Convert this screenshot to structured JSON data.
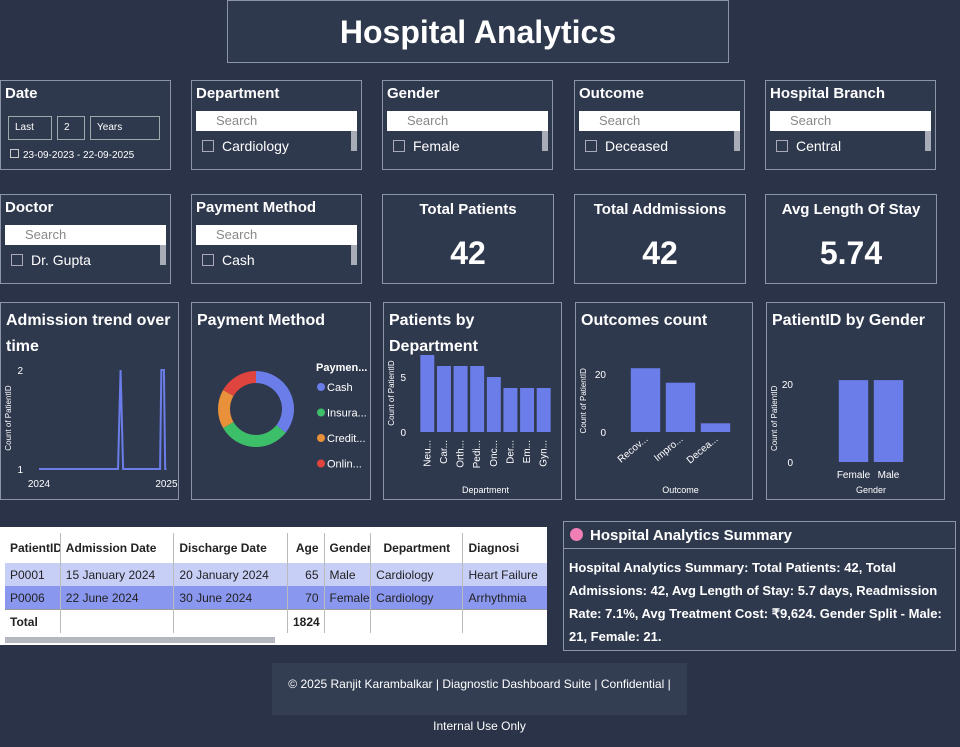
{
  "header": {
    "title": "Hospital Analytics"
  },
  "date_filter": {
    "label": "Date",
    "period": "Last",
    "count": "2",
    "unit": "Years",
    "range": "23-09-2023 - 22-09-2025"
  },
  "slicers": [
    {
      "label": "Department",
      "search": "Search",
      "option": "Cardiology"
    },
    {
      "label": "Gender",
      "search": "Search",
      "option": "Female"
    },
    {
      "label": "Outcome",
      "search": "Search",
      "option": "Deceased"
    },
    {
      "label": "Hospital Branch",
      "search": "Search",
      "option": "Central"
    },
    {
      "label": "Doctor",
      "search": "Search",
      "option": "Dr. Gupta"
    },
    {
      "label": "Payment Method",
      "search": "Search",
      "option": "Cash"
    }
  ],
  "kpis": [
    {
      "label": "Total Patients",
      "value": 42
    },
    {
      "label": "Total Addmissions",
      "value": 42
    },
    {
      "label": "Avg Length Of Stay",
      "value": 5.74
    }
  ],
  "chart_data": [
    {
      "type": "line",
      "title": "Admission trend over time",
      "y_label": "Count of PatientID",
      "color": "#6b7de8",
      "x": [
        2024.0,
        2024.62,
        2024.64,
        2024.66,
        2024.95,
        2024.96,
        2024.98,
        2024.99,
        2025.0
      ],
      "values": [
        1,
        1,
        2,
        1,
        1,
        2,
        2,
        1,
        1
      ],
      "xlim": [
        2024,
        2025.02
      ],
      "xticks": [
        2024,
        2025
      ],
      "ylim": [
        1,
        2
      ],
      "yticks": [
        1,
        2
      ]
    },
    {
      "type": "pie",
      "donut": true,
      "title": "Payment Method",
      "legend_title": "Paymen...",
      "categories": [
        "Cash",
        "Insura...",
        "Credit...",
        "Onlin..."
      ],
      "values": [
        15,
        13,
        7,
        7
      ],
      "colors": [
        "#6b7de8",
        "#3dbf6a",
        "#e8913a",
        "#e0443e"
      ]
    },
    {
      "type": "bar",
      "title": "Patients by Department",
      "x_label": "Department",
      "y_label": "Count of PatientID",
      "color": "#6b7de8",
      "categories": [
        "Neu...",
        "Car...",
        "Orth...",
        "Pedi...",
        "Onc...",
        "Der...",
        "Em...",
        "Gyn..."
      ],
      "values": [
        7,
        6,
        6,
        6,
        5,
        4,
        4,
        4
      ],
      "ylim": [
        0,
        8
      ],
      "yticks": [
        0,
        5
      ]
    },
    {
      "type": "bar",
      "title": "Outcomes count",
      "x_label": "Outcome",
      "y_label": "Count of PatientID",
      "color": "#6b7de8",
      "categories": [
        "Recov...",
        "Impro...",
        "Decea..."
      ],
      "values": [
        22,
        17,
        3
      ],
      "ylim": [
        0,
        25
      ],
      "yticks": [
        0,
        20
      ]
    },
    {
      "type": "bar",
      "title": "PatientID by Gender",
      "x_label": "Gender",
      "y_label": "Count of PatientID",
      "color": "#6b7de8",
      "categories": [
        "Female",
        "Male"
      ],
      "values": [
        21,
        21
      ],
      "ylim": [
        0,
        25
      ],
      "yticks": [
        0,
        20
      ]
    }
  ],
  "table": {
    "columns": [
      "PatientID",
      "Admission Date",
      "Discharge Date",
      "Age",
      "Gender",
      "Department",
      "Diagnosi"
    ],
    "rows": [
      [
        "P0001",
        "15 January 2024",
        "20 January 2024",
        65,
        "Male",
        "Cardiology",
        "Heart Failure"
      ],
      [
        "P0006",
        "22 June 2024",
        "30 June 2024",
        70,
        "Female",
        "Cardiology",
        "Arrhythmia"
      ]
    ],
    "total": {
      "label": "Total",
      "age": 1824
    }
  },
  "summary": {
    "title": "Hospital Analytics Summary",
    "text": "Hospital Analytics Summary: Total Patients: 42, Total Admissions: 42, Avg Length of Stay: 5.7 days, Readmission Rate: 7.1%, Avg Treatment Cost: ₹9,624. Gender Split - Male: 21, Female: 21."
  },
  "footer": "© 2025 Ranjit Karambalkar | Diagnostic Dashboard Suite | Confidential | Internal Use Only"
}
